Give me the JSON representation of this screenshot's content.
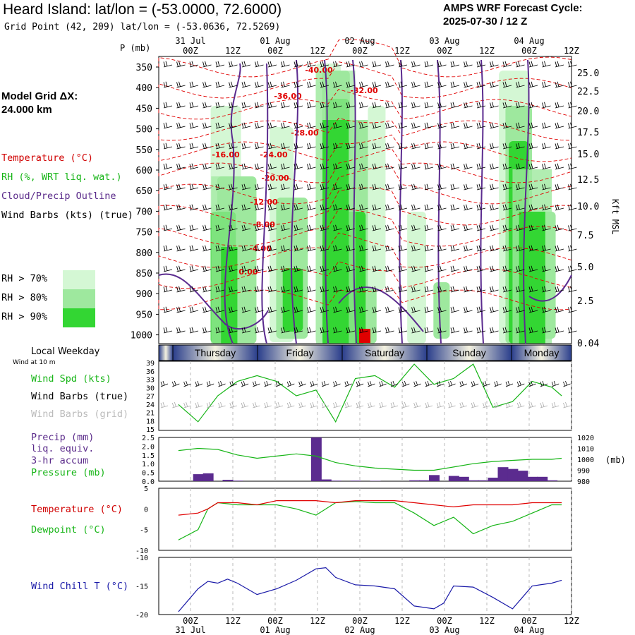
{
  "header": {
    "title": "Heard Island:  lat/lon = (-53.0000, 72.6000)",
    "subtitle": "Grid Point (42, 209) lat/lon = (-53.0636, 72.5269)",
    "cycle_line1": "AMPS WRF Forecast Cycle:",
    "cycle_line2": "2025-07-30 / 12  Z"
  },
  "left_panel": {
    "grid_label": "Model Grid ΔX:",
    "grid_value": " 24.000 km",
    "temperature": "Temperature (°C)",
    "rh": "RH (%, WRT liq. wat.)",
    "cloud": "Cloud/Precip Outline",
    "wind": "Wind Barbs (kts) (true)",
    "rh_legend": [
      {
        "label": "RH > 70%",
        "color": "#d4f7d4"
      },
      {
        "label": "RH > 80%",
        "color": "#9ee89e"
      },
      {
        "label": "RH > 90%",
        "color": "#33d633"
      }
    ],
    "local_weekday": "Local Weekday",
    "wind_at": "Wind at 10 m",
    "wind_spd": "Wind Spd (kts)",
    "wind_barbs_true": "Wind Barbs (true)",
    "wind_barbs_grid": "Wind Barbs (grid)",
    "precip": "Precip (mm)",
    "liq": "liq. equiv.",
    "accum": "3-hr accum",
    "pressure": "Pressure (mb)",
    "temp2": "Temperature (°C)",
    "dewpoint": "Dewpoint (°C)",
    "windchill": "Wind Chill T (°C)"
  },
  "time_axis": {
    "ticks": [
      "00Z",
      "12Z",
      "00Z",
      "12Z",
      "00Z",
      "12Z",
      "00Z",
      "12Z",
      "00Z",
      "12Z"
    ],
    "dates": [
      "31 Jul",
      "01 Aug",
      "02 Aug",
      "03 Aug",
      "04 Aug"
    ],
    "p_label": "P (mb)",
    "right_label": "Kft MSL"
  },
  "weekdays": [
    "Thursday",
    "Friday",
    "Saturday",
    "Sunday",
    "Monday"
  ],
  "chart_data": [
    {
      "type": "heatmap",
      "name": "Cross-section",
      "y_ticks": [
        "350",
        "400",
        "450",
        "500",
        "550",
        "600",
        "650",
        "700",
        "750",
        "800",
        "850",
        "900",
        "950",
        "1000"
      ],
      "right_ticks": [
        "25.0",
        "22.5",
        "20.0",
        "17.5",
        "15.0",
        "12.5",
        "10.0",
        "7.5",
        "5.0",
        "2.5",
        "0.04"
      ],
      "temperature_labels": [
        "-40.00",
        "-36.00",
        "-32.00",
        "-28.00",
        "-24.00",
        "-20.00",
        "-16.00",
        "-12.00",
        "-8.00",
        "-4.00",
        "0.00"
      ]
    },
    {
      "type": "line",
      "name": "Wind Spd (kts)",
      "y_ticks": [
        "39",
        "36",
        "33",
        "30",
        "27",
        "24",
        "21",
        "18",
        "15"
      ],
      "ylim": [
        15,
        39
      ],
      "hours": [
        0,
        6,
        12,
        18,
        24,
        30,
        36,
        42,
        48,
        54,
        60,
        66,
        72,
        78,
        84,
        90,
        96,
        102,
        108,
        114,
        117
      ],
      "values": [
        24,
        18,
        27,
        32,
        34,
        32,
        27,
        29,
        18,
        33,
        34,
        30,
        38,
        31,
        33,
        38,
        23,
        25,
        32,
        30,
        27
      ]
    },
    {
      "type": "bar",
      "name": "Precip (mm)",
      "y_ticks": [
        "2.5",
        "2.0",
        "1.5",
        "1.0",
        "0.5",
        "0.0"
      ],
      "right_ticks": [
        "1020",
        "1010",
        "1000",
        "990",
        "980"
      ],
      "right_unit": "(mb)",
      "hours": [
        6,
        9,
        15,
        18,
        42,
        45,
        48,
        54,
        60,
        72,
        75,
        78,
        84,
        87,
        90,
        93,
        96,
        99,
        102,
        105,
        108,
        111,
        114
      ],
      "values": [
        0.4,
        0.45,
        0.08,
        0.03,
        2.5,
        0.1,
        0.03,
        0.03,
        0.02,
        0.05,
        0.05,
        0.35,
        0.3,
        0.25,
        0.05,
        0.05,
        0.2,
        0.8,
        0.7,
        0.6,
        0.25,
        0.25,
        0.05
      ],
      "pressure_hours": [
        0,
        6,
        12,
        18,
        24,
        30,
        36,
        42,
        48,
        54,
        60,
        66,
        72,
        78,
        84,
        90,
        96,
        102,
        108,
        114,
        117
      ],
      "pressure": [
        1008,
        1010,
        1009,
        1004,
        1001,
        1003,
        1005,
        1003,
        997,
        994,
        992,
        991,
        990,
        990,
        993,
        996,
        998,
        999,
        1000,
        1000,
        1001
      ]
    },
    {
      "type": "line",
      "name": "Temperature / Dewpoint",
      "y_ticks": [
        "5",
        "0",
        "-5",
        "-10"
      ],
      "ylim": [
        -10,
        5
      ],
      "hours": [
        0,
        6,
        9,
        12,
        18,
        24,
        30,
        36,
        42,
        48,
        54,
        60,
        66,
        72,
        78,
        84,
        90,
        96,
        102,
        108,
        114,
        117
      ],
      "temperature": [
        -1.5,
        -1,
        0,
        1.5,
        1.5,
        1,
        2,
        2,
        2,
        1.5,
        2,
        2,
        2,
        1.5,
        1,
        0.5,
        1,
        1,
        1,
        1.5,
        1.5,
        1.5
      ],
      "dewpoint": [
        -7.5,
        -5,
        0,
        1.5,
        1,
        1,
        1,
        0,
        -1.5,
        1.5,
        1.8,
        1.5,
        1.5,
        -1,
        -4,
        -2,
        -6,
        -4,
        -3,
        -1,
        1,
        1
      ]
    },
    {
      "type": "line",
      "name": "Wind Chill T (°C)",
      "y_ticks": [
        "-10",
        "-15",
        "-20"
      ],
      "ylim": [
        -20,
        -10
      ],
      "hours": [
        0,
        6,
        9,
        12,
        15,
        18,
        24,
        30,
        36,
        42,
        45,
        48,
        54,
        60,
        66,
        72,
        78,
        81,
        84,
        90,
        96,
        102,
        105,
        108,
        114,
        117
      ],
      "values": [
        -19.5,
        -15.5,
        -14.2,
        -14.5,
        -13.8,
        -14.5,
        -16.5,
        -15.5,
        -14,
        -12,
        -11.8,
        -13.5,
        -14.8,
        -15,
        -15.5,
        -18.5,
        -19,
        -18,
        -15,
        -15.2,
        -17,
        -19,
        -17,
        -15,
        -14.5,
        -14
      ]
    }
  ]
}
